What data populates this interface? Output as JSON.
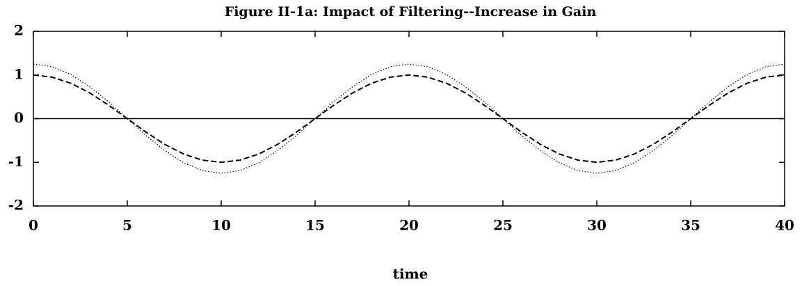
{
  "chart_data": {
    "type": "line",
    "title": "Figure II-1a: Impact of Filtering--Increase in Gain",
    "xlabel": "time",
    "x": [
      0,
      1,
      2,
      3,
      4,
      5,
      6,
      7,
      8,
      9,
      10,
      11,
      12,
      13,
      14,
      15,
      16,
      17,
      18,
      19,
      20,
      21,
      22,
      23,
      24,
      25,
      26,
      27,
      28,
      29,
      30,
      31,
      32,
      33,
      34,
      35,
      36,
      37,
      38,
      39,
      40
    ],
    "series": [
      {
        "color": "#000000",
        "style": "dashed",
        "values": [
          1,
          0.95,
          0.81,
          0.59,
          0.31,
          0,
          -0.31,
          -0.59,
          -0.81,
          -0.95,
          -1,
          -0.95,
          -0.81,
          -0.59,
          -0.31,
          0,
          0.31,
          0.59,
          0.81,
          0.95,
          1,
          0.95,
          0.81,
          0.59,
          0.31,
          0,
          -0.31,
          -0.59,
          -0.81,
          -0.95,
          -1,
          -0.95,
          -0.81,
          -0.59,
          -0.31,
          0,
          0.31,
          0.59,
          0.81,
          0.95,
          1
        ]
      },
      {
        "color": "#000000",
        "style": "dotted",
        "values": [
          1.25,
          1.19,
          1.01,
          0.73,
          0.39,
          0,
          -0.39,
          -0.73,
          -1.01,
          -1.19,
          -1.25,
          -1.19,
          -1.01,
          -0.73,
          -0.39,
          0,
          0.39,
          0.73,
          1.01,
          1.19,
          1.25,
          1.19,
          1.01,
          0.73,
          0.39,
          0,
          -0.39,
          -0.73,
          -1.01,
          -1.19,
          -1.25,
          -1.19,
          -1.01,
          -0.73,
          -0.39,
          0,
          0.39,
          0.73,
          1.01,
          1.19,
          1.25
        ]
      }
    ],
    "hlines": [
      0
    ],
    "xlim": [
      0,
      40
    ],
    "xticks": [
      0,
      5,
      10,
      15,
      20,
      25,
      30,
      35,
      40
    ],
    "ylim": [
      -2,
      2
    ],
    "yticks": [
      -2,
      -1,
      0,
      1,
      2
    ]
  }
}
